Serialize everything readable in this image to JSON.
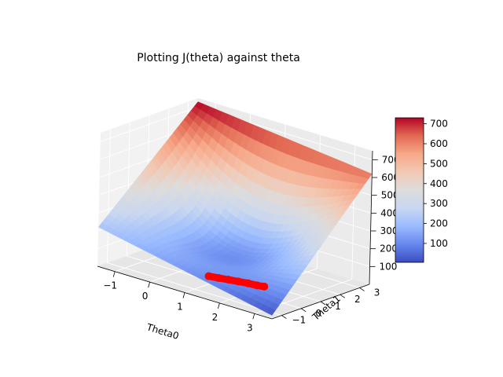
{
  "chart_data": {
    "type": "surface3d",
    "title": "Plotting J(theta) against theta",
    "xlabel": "Theta0",
    "ylabel": "Theta1",
    "zlabel": "",
    "xlim": [
      -1.5,
      3.5
    ],
    "ylim": [
      -1.5,
      3.5
    ],
    "zlim": [
      0,
      750
    ],
    "x_ticks": [
      -1,
      0,
      1,
      2,
      3
    ],
    "y_ticks": [
      -1,
      0,
      1,
      2,
      3
    ],
    "z_ticks": [
      100,
      200,
      300,
      400,
      500,
      600,
      700
    ],
    "surface_corner_values": {
      "theta0_min_theta1_min": 220,
      "theta0_max_theta1_min": 20,
      "theta0_min_theta1_max": 730,
      "theta0_max_theta1_max": 620
    },
    "colormap": "coolwarm",
    "colorbar": {
      "ticks": [
        100,
        200,
        300,
        400,
        500,
        600,
        700
      ],
      "range": [
        5,
        730
      ],
      "colors": [
        "#3b4cc0",
        "#6788ee",
        "#9abbff",
        "#c9d7f0",
        "#dddcdc",
        "#f2c9b4",
        "#f7a889",
        "#e36a53",
        "#b40426"
      ]
    },
    "descent_path": {
      "color": "#ff0000",
      "points": [
        {
          "theta0": 0.9,
          "theta1": -0.1,
          "cost": 32
        },
        {
          "theta0": 1.1,
          "theta1": 0.05,
          "cost": 28
        },
        {
          "theta0": 1.3,
          "theta1": 0.2,
          "cost": 24
        },
        {
          "theta0": 1.5,
          "theta1": 0.35,
          "cost": 20
        },
        {
          "theta0": 1.7,
          "theta1": 0.5,
          "cost": 16
        },
        {
          "theta0": 1.9,
          "theta1": 0.6,
          "cost": 12
        },
        {
          "theta0": 2.05,
          "theta1": 0.7,
          "cost": 10
        }
      ]
    }
  }
}
